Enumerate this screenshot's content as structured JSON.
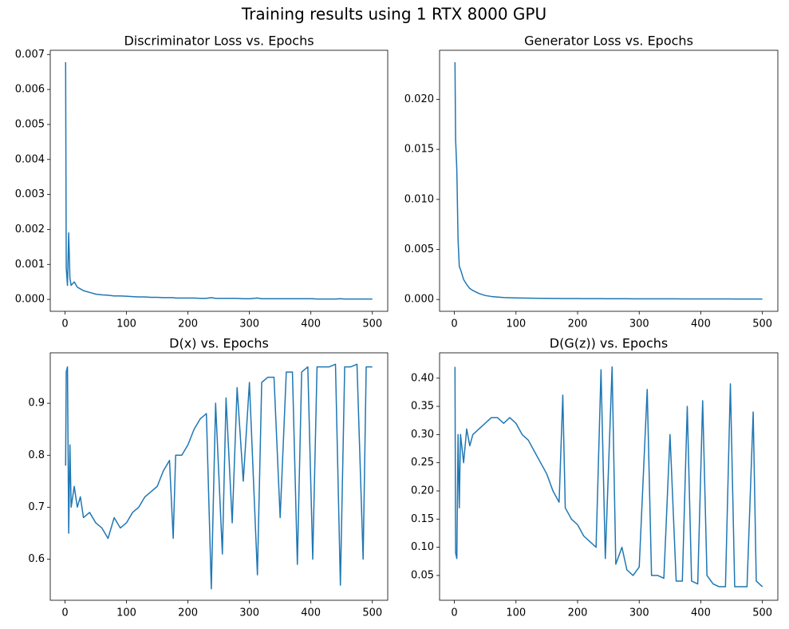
{
  "title": "Training results using 1 RTX 8000 GPU",
  "chart_data": [
    {
      "type": "line",
      "title": "Discriminator Loss vs. Epochs",
      "color": "#1f77b4",
      "x": [
        1,
        2,
        4,
        6,
        8,
        10,
        15,
        20,
        25,
        30,
        40,
        50,
        60,
        70,
        80,
        90,
        100,
        110,
        120,
        130,
        140,
        150,
        160,
        170,
        176,
        180,
        190,
        200,
        210,
        220,
        230,
        238,
        245,
        256,
        262,
        272,
        280,
        290,
        300,
        313,
        320,
        330,
        340,
        350,
        360,
        370,
        378,
        385,
        395,
        403,
        410,
        420,
        430,
        440,
        448,
        455,
        465,
        475,
        485,
        490,
        500
      ],
      "values": [
        0.00678,
        0.0009,
        0.0004,
        0.0019,
        0.0006,
        0.0004,
        0.0005,
        0.00035,
        0.0003,
        0.00025,
        0.0002,
        0.00015,
        0.00013,
        0.00012,
        0.0001,
        0.0001,
        9e-05,
        8e-05,
        7e-05,
        7e-05,
        6e-05,
        6e-05,
        5e-05,
        5e-05,
        5e-05,
        4e-05,
        4e-05,
        4e-05,
        4e-05,
        3e-05,
        3e-05,
        5e-05,
        3e-05,
        3e-05,
        3e-05,
        3e-05,
        3e-05,
        2e-05,
        2e-05,
        4e-05,
        2e-05,
        2e-05,
        2e-05,
        2e-05,
        2e-05,
        2e-05,
        2e-05,
        2e-05,
        2e-05,
        2e-05,
        1e-05,
        1e-05,
        1e-05,
        1e-05,
        2e-05,
        1e-05,
        1e-05,
        1e-05,
        1e-05,
        1e-05,
        1e-05
      ],
      "xlim": [
        -24,
        525
      ],
      "ylim": [
        -0.00034,
        0.00712
      ],
      "xticks": [
        0,
        100,
        200,
        300,
        400,
        500
      ],
      "yticks": [
        {
          "value": 0,
          "label": "0.000"
        },
        {
          "value": 0.001,
          "label": "0.001"
        },
        {
          "value": 0.002,
          "label": "0.002"
        },
        {
          "value": 0.003,
          "label": "0.003"
        },
        {
          "value": 0.004,
          "label": "0.004"
        },
        {
          "value": 0.005,
          "label": "0.005"
        },
        {
          "value": 0.006,
          "label": "0.006"
        },
        {
          "value": 0.007,
          "label": "0.007"
        }
      ]
    },
    {
      "type": "line",
      "title": "Generator Loss vs. Epochs",
      "color": "#1f77b4",
      "x": [
        1,
        2,
        4,
        6,
        8,
        10,
        15,
        20,
        25,
        30,
        40,
        50,
        60,
        70,
        80,
        90,
        100,
        110,
        120,
        130,
        140,
        150,
        160,
        170,
        176,
        180,
        190,
        200,
        210,
        220,
        230,
        238,
        245,
        256,
        262,
        272,
        280,
        290,
        300,
        313,
        320,
        330,
        340,
        350,
        360,
        370,
        378,
        385,
        395,
        403,
        410,
        420,
        430,
        440,
        448,
        455,
        465,
        475,
        485,
        490,
        500
      ],
      "values": [
        0.0237,
        0.016,
        0.013,
        0.006,
        0.0033,
        0.003,
        0.002,
        0.0015,
        0.0011,
        0.0009,
        0.0006,
        0.0004,
        0.0003,
        0.00025,
        0.0002,
        0.00018,
        0.00016,
        0.00015,
        0.00014,
        0.00013,
        0.00012,
        0.00012,
        0.00011,
        0.00011,
        0.0001,
        0.0001,
        0.0001,
        0.0001,
        9e-05,
        9e-05,
        9e-05,
        9e-05,
        8e-05,
        8e-05,
        8e-05,
        8e-05,
        8e-05,
        7e-05,
        7e-05,
        7e-05,
        7e-05,
        7e-05,
        7e-05,
        7e-05,
        7e-05,
        6e-05,
        6e-05,
        6e-05,
        6e-05,
        6e-05,
        6e-05,
        6e-05,
        6e-05,
        6e-05,
        6e-05,
        5e-05,
        5e-05,
        5e-05,
        5e-05,
        5e-05,
        5e-05
      ],
      "xlim": [
        -24,
        525
      ],
      "ylim": [
        -0.00118,
        0.0249
      ],
      "xticks": [
        0,
        100,
        200,
        300,
        400,
        500
      ],
      "yticks": [
        {
          "value": 0,
          "label": "0.000"
        },
        0.005,
        {
          "value": 0.01,
          "label": "0.010"
        },
        0.015,
        {
          "value": 0.02,
          "label": "0.020"
        }
      ]
    },
    {
      "type": "line",
      "title": "D(x) vs. Epochs",
      "color": "#1f77b4",
      "x": [
        1,
        2,
        4,
        6,
        8,
        10,
        15,
        20,
        25,
        30,
        40,
        50,
        60,
        70,
        80,
        90,
        100,
        110,
        120,
        130,
        140,
        150,
        160,
        170,
        176,
        180,
        190,
        200,
        210,
        220,
        230,
        238,
        245,
        256,
        262,
        272,
        280,
        290,
        300,
        313,
        320,
        330,
        340,
        350,
        360,
        370,
        378,
        385,
        395,
        403,
        410,
        420,
        430,
        440,
        448,
        455,
        465,
        475,
        485,
        490,
        500
      ],
      "values": [
        0.78,
        0.96,
        0.97,
        0.65,
        0.82,
        0.7,
        0.74,
        0.7,
        0.72,
        0.68,
        0.69,
        0.67,
        0.66,
        0.64,
        0.68,
        0.66,
        0.67,
        0.69,
        0.7,
        0.72,
        0.73,
        0.74,
        0.77,
        0.79,
        0.64,
        0.8,
        0.8,
        0.82,
        0.85,
        0.87,
        0.88,
        0.543,
        0.9,
        0.61,
        0.91,
        0.67,
        0.93,
        0.75,
        0.94,
        0.57,
        0.94,
        0.95,
        0.95,
        0.68,
        0.96,
        0.96,
        0.59,
        0.96,
        0.97,
        0.6,
        0.97,
        0.97,
        0.97,
        0.975,
        0.55,
        0.97,
        0.97,
        0.975,
        0.6,
        0.97,
        0.97
      ],
      "xlim": [
        -24,
        525
      ],
      "ylim": [
        0.521,
        0.997
      ],
      "xticks": [
        0,
        100,
        200,
        300,
        400,
        500
      ],
      "yticks": [
        0.6,
        0.7,
        0.8,
        0.9
      ]
    },
    {
      "type": "line",
      "title": "D(G(z)) vs. Epochs",
      "color": "#1f77b4",
      "x": [
        1,
        2,
        4,
        6,
        8,
        10,
        15,
        20,
        25,
        30,
        40,
        50,
        60,
        70,
        80,
        90,
        100,
        110,
        120,
        130,
        140,
        150,
        160,
        170,
        176,
        180,
        190,
        200,
        210,
        220,
        230,
        238,
        245,
        256,
        262,
        272,
        280,
        290,
        300,
        313,
        320,
        330,
        340,
        350,
        360,
        370,
        378,
        385,
        395,
        403,
        410,
        420,
        430,
        440,
        448,
        455,
        465,
        475,
        485,
        490,
        500
      ],
      "values": [
        0.42,
        0.09,
        0.08,
        0.3,
        0.17,
        0.3,
        0.25,
        0.31,
        0.28,
        0.3,
        0.31,
        0.32,
        0.33,
        0.33,
        0.32,
        0.33,
        0.32,
        0.3,
        0.29,
        0.27,
        0.25,
        0.23,
        0.2,
        0.18,
        0.37,
        0.17,
        0.15,
        0.14,
        0.12,
        0.11,
        0.1,
        0.415,
        0.08,
        0.42,
        0.07,
        0.1,
        0.06,
        0.05,
        0.065,
        0.38,
        0.05,
        0.05,
        0.045,
        0.3,
        0.04,
        0.04,
        0.35,
        0.04,
        0.035,
        0.36,
        0.05,
        0.035,
        0.03,
        0.03,
        0.39,
        0.03,
        0.03,
        0.03,
        0.34,
        0.04,
        0.03
      ],
      "xlim": [
        -24,
        525
      ],
      "ylim": [
        0.006,
        0.445
      ],
      "xticks": [
        0,
        100,
        200,
        300,
        400,
        500
      ],
      "yticks": [
        0.05,
        {
          "value": 0.1,
          "label": "0.10"
        },
        0.15,
        {
          "value": 0.2,
          "label": "0.20"
        },
        0.25,
        {
          "value": 0.3,
          "label": "0.30"
        },
        0.35,
        {
          "value": 0.4,
          "label": "0.40"
        }
      ]
    }
  ]
}
